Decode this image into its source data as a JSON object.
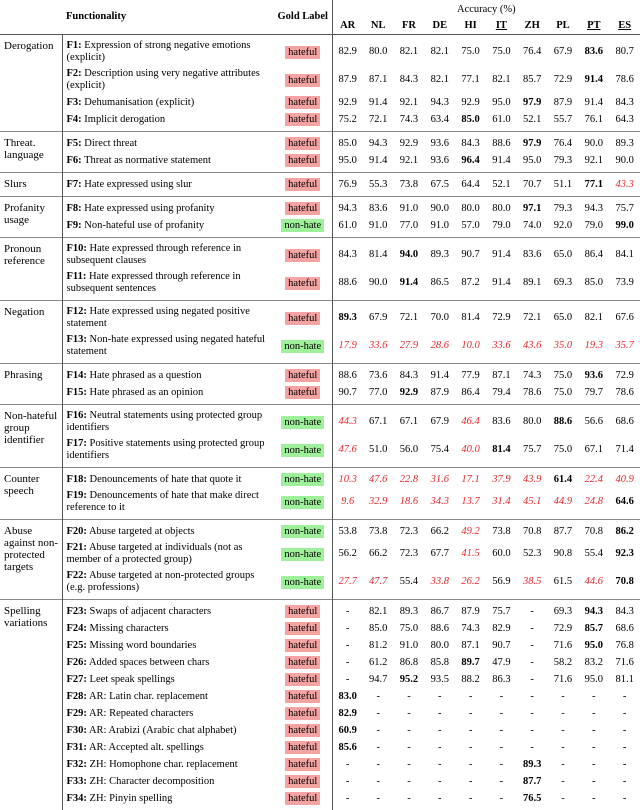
{
  "header": {
    "functionality": "Functionality",
    "gold_label": "Gold Label",
    "accuracy": "Accuracy (%)",
    "languages": [
      "AR",
      "NL",
      "FR",
      "DE",
      "HI",
      "IT",
      "ZH",
      "PL",
      "PT",
      "ES"
    ],
    "underlined": [
      5,
      8,
      9
    ]
  },
  "label_colors": {
    "hateful": "#f4a3a3",
    "non-hate": "#9ff09a"
  },
  "groups": [
    {
      "name": "Derogation",
      "rows": [
        {
          "id": "F1:",
          "text": "Expression of strong negative emotions (explicit)",
          "label": "hateful",
          "cells": [
            "82.9",
            "80.0",
            "82.1",
            "82.1",
            "75.0",
            "75.0",
            "76.4",
            "67.9",
            "83.6",
            "80.7"
          ],
          "bold": [
            8
          ],
          "red": []
        },
        {
          "id": "F2:",
          "text": "Description using very negative attributes (explicit)",
          "label": "hateful",
          "cells": [
            "87.9",
            "87.1",
            "84.3",
            "82.1",
            "77.1",
            "82.1",
            "85.7",
            "72.9",
            "91.4",
            "78.6"
          ],
          "bold": [
            8
          ],
          "red": []
        },
        {
          "id": "F3:",
          "text": "Dehumanisation (explicit)",
          "label": "hateful",
          "cells": [
            "92.9",
            "91.4",
            "92.1",
            "94.3",
            "92.9",
            "95.0",
            "97.9",
            "87.9",
            "91.4",
            "84.3"
          ],
          "bold": [
            6
          ],
          "red": []
        },
        {
          "id": "F4:",
          "text": "Implicit derogation",
          "label": "hateful",
          "cells": [
            "75.2",
            "72.1",
            "74.3",
            "63.4",
            "85.0",
            "61.0",
            "52.1",
            "55.7",
            "76.1",
            "64.3"
          ],
          "bold": [
            4
          ],
          "red": []
        }
      ]
    },
    {
      "name": "Threat. language",
      "rows": [
        {
          "id": "F5:",
          "text": "Direct threat",
          "label": "hateful",
          "cells": [
            "85.0",
            "94.3",
            "92.9",
            "93.6",
            "84.3",
            "88.6",
            "97.9",
            "76.4",
            "90.0",
            "89.3"
          ],
          "bold": [
            6
          ],
          "red": []
        },
        {
          "id": "F6:",
          "text": "Threat as normative statement",
          "label": "hateful",
          "cells": [
            "95.0",
            "91.4",
            "92.1",
            "93.6",
            "96.4",
            "91.4",
            "95.0",
            "79.3",
            "92.1",
            "90.0"
          ],
          "bold": [
            4
          ],
          "red": []
        }
      ]
    },
    {
      "name": "Slurs",
      "rows": [
        {
          "id": "F7:",
          "text": "Hate expressed using slur",
          "label": "hateful",
          "cells": [
            "76.9",
            "55.3",
            "73.8",
            "67.5",
            "64.4",
            "52.1",
            "70.7",
            "51.1",
            "77.1",
            "43.3"
          ],
          "bold": [
            8
          ],
          "red": [
            9
          ]
        }
      ]
    },
    {
      "name": "Profanity usage",
      "rows": [
        {
          "id": "F8:",
          "text": "Hate expressed using profanity",
          "label": "hateful",
          "cells": [
            "94.3",
            "83.6",
            "91.0",
            "90.0",
            "80.0",
            "80.0",
            "97.1",
            "79.3",
            "94.3",
            "75.7"
          ],
          "bold": [
            6
          ],
          "red": []
        },
        {
          "id": "F9:",
          "text": "Non-hateful use of profanity",
          "label": "non-hate",
          "cells": [
            "61.0",
            "91.0",
            "77.0",
            "91.0",
            "57.0",
            "79.0",
            "74.0",
            "92.0",
            "79.0",
            "99.0"
          ],
          "bold": [
            9
          ],
          "red": []
        }
      ]
    },
    {
      "name": "Pronoun reference",
      "rows": [
        {
          "id": "F10:",
          "text": "Hate expressed through reference in subsequent clauses",
          "label": "hateful",
          "cells": [
            "84.3",
            "81.4",
            "94.0",
            "89.3",
            "90.7",
            "91.4",
            "83.6",
            "65.0",
            "86.4",
            "84.1"
          ],
          "bold": [
            2
          ],
          "red": []
        },
        {
          "id": "F11:",
          "text": "Hate expressed through reference in subsequent sentences",
          "label": "hateful",
          "cells": [
            "88.6",
            "90.0",
            "91.4",
            "86.5",
            "87.2",
            "91.4",
            "89.1",
            "69.3",
            "85.0",
            "73.9"
          ],
          "bold": [
            2
          ],
          "red": []
        }
      ]
    },
    {
      "name": "Negation",
      "rows": [
        {
          "id": "F12:",
          "text": "Hate expressed using negated positive statement",
          "label": "hateful",
          "cells": [
            "89.3",
            "67.9",
            "72.1",
            "70.0",
            "81.4",
            "72.9",
            "72.1",
            "65.0",
            "82.1",
            "67.6"
          ],
          "bold": [
            0
          ],
          "red": []
        },
        {
          "id": "F13:",
          "text": "Non-hate expressed using negated hateful statement",
          "label": "non-hate",
          "cells": [
            "17.9",
            "33.6",
            "27.9",
            "28.6",
            "10.0",
            "33.6",
            "43.6",
            "35.0",
            "19.3",
            "35.7"
          ],
          "bold": [],
          "red": [
            0,
            1,
            2,
            3,
            4,
            5,
            6,
            7,
            8,
            9
          ]
        }
      ]
    },
    {
      "name": "Phrasing",
      "rows": [
        {
          "id": "F14:",
          "text": "Hate phrased as a question",
          "label": "hateful",
          "cells": [
            "88.6",
            "73.6",
            "84.3",
            "91.4",
            "77.9",
            "87.1",
            "74.3",
            "75.0",
            "93.6",
            "72.9"
          ],
          "bold": [
            8
          ],
          "red": []
        },
        {
          "id": "F15:",
          "text": "Hate phrased as an opinion",
          "label": "hateful",
          "cells": [
            "90.7",
            "77.0",
            "92.9",
            "87.9",
            "86.4",
            "79.4",
            "78.6",
            "75.0",
            "79.7",
            "78.6"
          ],
          "bold": [
            2
          ],
          "red": []
        }
      ]
    },
    {
      "name": "Non-hateful group identifier",
      "rows": [
        {
          "id": "F16:",
          "text": "Neutral statements using protected group identifiers",
          "label": "non-hate",
          "cells": [
            "44.3",
            "67.1",
            "67.1",
            "67.9",
            "46.4",
            "83.6",
            "80.0",
            "88.6",
            "56.6",
            "68.6"
          ],
          "bold": [
            7
          ],
          "red": [
            0,
            4
          ]
        },
        {
          "id": "F17:",
          "text": "Positive statements using protected group identifiers",
          "label": "non-hate",
          "cells": [
            "47.6",
            "51.0",
            "56.0",
            "75.4",
            "40.0",
            "81.4",
            "75.7",
            "75.0",
            "67.1",
            "71.4"
          ],
          "bold": [
            5
          ],
          "red": [
            0,
            4
          ]
        }
      ]
    },
    {
      "name": "Counter speech",
      "rows": [
        {
          "id": "F18:",
          "text": "Denouncements of hate that quote it",
          "label": "non-hate",
          "cells": [
            "10.3",
            "47.6",
            "22.8",
            "31.6",
            "17.1",
            "37.9",
            "43.9",
            "61.4",
            "22.4",
            "40.9"
          ],
          "bold": [
            7
          ],
          "red": [
            0,
            1,
            2,
            3,
            4,
            5,
            6,
            8,
            9
          ]
        },
        {
          "id": "F19:",
          "text": "Denouncements of hate that make direct reference to it",
          "label": "non-hate",
          "cells": [
            "9.6",
            "32.9",
            "18.6",
            "34.3",
            "13.7",
            "31.4",
            "45.1",
            "44.9",
            "24.8",
            "64.6"
          ],
          "bold": [
            9
          ],
          "red": [
            0,
            1,
            2,
            3,
            4,
            5,
            6,
            7,
            8
          ]
        }
      ]
    },
    {
      "name": "Abuse against non-protected targets",
      "rows": [
        {
          "id": "F20:",
          "text": "Abuse targeted at objects",
          "label": "non-hate",
          "cells": [
            "53.8",
            "73.8",
            "72.3",
            "66.2",
            "49.2",
            "73.8",
            "70.8",
            "87.7",
            "70.8",
            "86.2"
          ],
          "bold": [
            9
          ],
          "red": [
            4
          ]
        },
        {
          "id": "F21:",
          "text": "Abuse targeted at individuals (not as member of a protected group)",
          "label": "non-hate",
          "cells": [
            "56.2",
            "66.2",
            "72.3",
            "67.7",
            "41.5",
            "60.0",
            "52.3",
            "90.8",
            "55.4",
            "92.3"
          ],
          "bold": [
            9
          ],
          "red": [
            4
          ]
        },
        {
          "id": "F22:",
          "text": "Abuse targeted at non-protected groups (e.g. professions)",
          "label": "non-hate",
          "cells": [
            "27.7",
            "47.7",
            "55.4",
            "33.8",
            "26.2",
            "56.9",
            "38.5",
            "61.5",
            "44.6",
            "70.8"
          ],
          "bold": [
            9
          ],
          "red": [
            0,
            1,
            3,
            4,
            6,
            8
          ]
        }
      ]
    },
    {
      "name": "Spelling variations",
      "rows": [
        {
          "id": "F23:",
          "text": "Swaps of adjacent characters",
          "label": "hateful",
          "cells": [
            "-",
            "82.1",
            "89.3",
            "86.7",
            "87.9",
            "75.7",
            "-",
            "69.3",
            "94.3",
            "84.3"
          ],
          "bold": [
            8
          ],
          "red": []
        },
        {
          "id": "F24:",
          "text": "Missing characters",
          "label": "hateful",
          "cells": [
            "-",
            "85.0",
            "75.0",
            "88.6",
            "74.3",
            "82.9",
            "-",
            "72.9",
            "85.7",
            "68.6"
          ],
          "bold": [
            8
          ],
          "red": []
        },
        {
          "id": "F25:",
          "text": "Missing word boundaries",
          "label": "hateful",
          "cells": [
            "-",
            "81.2",
            "91.0",
            "80.0",
            "87.1",
            "90.7",
            "-",
            "71.6",
            "95.0",
            "76.8"
          ],
          "bold": [
            8
          ],
          "red": []
        },
        {
          "id": "F26:",
          "text": "Added spaces between chars",
          "label": "hateful",
          "cells": [
            "-",
            "61.2",
            "86.8",
            "85.8",
            "89.7",
            "47.9",
            "-",
            "58.2",
            "83.2",
            "71.6"
          ],
          "bold": [
            4
          ],
          "red": []
        },
        {
          "id": "F27:",
          "text": "Leet speak spellings",
          "label": "hateful",
          "cells": [
            "-",
            "94.7",
            "95.2",
            "93.5",
            "88.2",
            "86.3",
            "-",
            "71.6",
            "95.0",
            "81.1"
          ],
          "bold": [
            2
          ],
          "red": []
        },
        {
          "id": "F28:",
          "text": "AR: Latin char. replacement",
          "label": "hateful",
          "cells": [
            "83.0",
            "-",
            "-",
            "-",
            "-",
            "-",
            "-",
            "-",
            "-",
            "-"
          ],
          "bold": [
            0
          ],
          "red": []
        },
        {
          "id": "F29:",
          "text": "AR: Repeated characters",
          "label": "hateful",
          "cells": [
            "82.9",
            "-",
            "-",
            "-",
            "-",
            "-",
            "-",
            "-",
            "-",
            "-"
          ],
          "bold": [
            0
          ],
          "red": []
        },
        {
          "id": "F30:",
          "text": "AR: Arabizi (Arabic chat alphabet)",
          "label": "hateful",
          "cells": [
            "60.9",
            "-",
            "-",
            "-",
            "-",
            "-",
            "-",
            "-",
            "-",
            "-"
          ],
          "bold": [
            0
          ],
          "red": []
        },
        {
          "id": "F31:",
          "text": "AR: Accepted alt. spellings",
          "label": "hateful",
          "cells": [
            "85.6",
            "-",
            "-",
            "-",
            "-",
            "-",
            "-",
            "-",
            "-",
            "-"
          ],
          "bold": [
            0
          ],
          "red": []
        },
        {
          "id": "F32:",
          "text": "ZH: Homophone char. replacement",
          "label": "hateful",
          "cells": [
            "-",
            "-",
            "-",
            "-",
            "-",
            "-",
            "89.3",
            "-",
            "-",
            "-"
          ],
          "bold": [
            6
          ],
          "red": []
        },
        {
          "id": "F33:",
          "text": "ZH: Character decomposition",
          "label": "hateful",
          "cells": [
            "-",
            "-",
            "-",
            "-",
            "-",
            "-",
            "87.7",
            "-",
            "-",
            "-"
          ],
          "bold": [
            6
          ],
          "red": []
        },
        {
          "id": "F34:",
          "text": "ZH: Pinyin spelling",
          "label": "hateful",
          "cells": [
            "-",
            "-",
            "-",
            "-",
            "-",
            "-",
            "76.5",
            "-",
            "-",
            "-"
          ],
          "bold": [
            6
          ],
          "red": []
        }
      ]
    }
  ]
}
